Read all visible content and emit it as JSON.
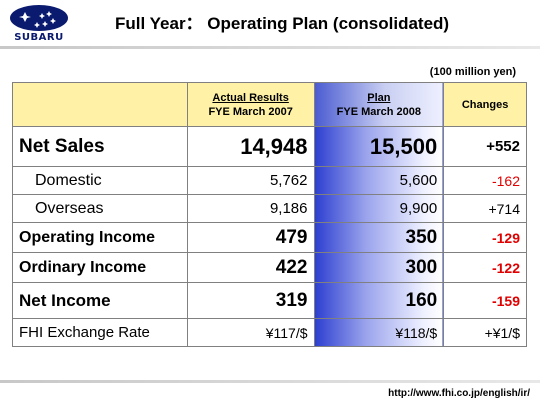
{
  "brand": {
    "logo_text": "SUBARU",
    "colors": {
      "navy": "#0a1a6e",
      "plan_blue": "#2c3ed0",
      "header_yellow": "#fff2a6",
      "negative_red": "#e00000"
    }
  },
  "header": {
    "title": "Full Year： Operating Plan (consolidated)"
  },
  "unit_note": "(100 million yen)",
  "table": {
    "columns": {
      "actual_line1": "Actual Results",
      "actual_line2": "FYE March 2007",
      "plan_line1": "Plan",
      "plan_line2": "FYE March 2008",
      "changes": "Changes"
    },
    "rows": [
      {
        "label": "Net Sales",
        "actual": "14,948",
        "plan": "15,500",
        "change": "+552"
      },
      {
        "label": "Domestic",
        "actual": "5,762",
        "plan": "5,600",
        "change": "-162"
      },
      {
        "label": "Overseas",
        "actual": "9,186",
        "plan": "9,900",
        "change": "+714"
      },
      {
        "label": "Operating Income",
        "actual": "479",
        "plan": "350",
        "change": "-129"
      },
      {
        "label": "Ordinary Income",
        "actual": "422",
        "plan": "300",
        "change": "-122"
      },
      {
        "label": "Net Income",
        "actual": "319",
        "plan": "160",
        "change": "-159"
      },
      {
        "label": "FHI Exchange Rate",
        "actual": "¥117/$",
        "plan": "¥118/$",
        "change": "+¥1/$"
      }
    ]
  },
  "footer": {
    "url": "http://www.fhi.co.jp/english/ir/"
  }
}
